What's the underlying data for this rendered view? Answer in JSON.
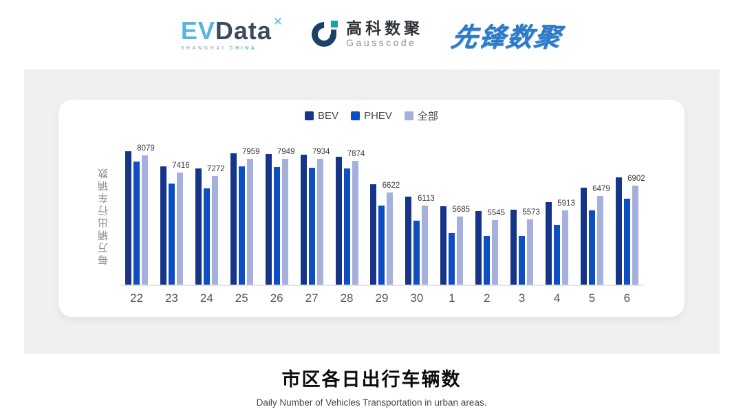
{
  "header": {
    "evdata": {
      "ev": "EV",
      "data": "Data",
      "star": "✕",
      "sub_left": "SHANGHAI",
      "sub_right": "CHINA"
    },
    "gausscode": {
      "cn": "高科数聚",
      "en": "Gausscode"
    },
    "pioneer": {
      "text": "先锋数聚"
    }
  },
  "chart_data": {
    "type": "bar",
    "title": "市区各日出行车辆数",
    "subtitle": "Daily Number of Vehicles Transportation in urban areas.",
    "ylabel": "每万辆出行车辆数",
    "legend_position": "top",
    "grid": false,
    "ylim": [
      3000,
      9000
    ],
    "categories": [
      "22",
      "23",
      "24",
      "25",
      "26",
      "27",
      "28",
      "29",
      "30",
      "1",
      "2",
      "3",
      "4",
      "5",
      "6"
    ],
    "series": [
      {
        "name": "BEV",
        "color": "#163488",
        "values": [
          8240,
          7660,
          7570,
          8160,
          8130,
          8120,
          8030,
          6940,
          6460,
          6080,
          5900,
          5940,
          6230,
          6800,
          7220
        ]
      },
      {
        "name": "PHEV",
        "color": "#0d4fc3",
        "values": [
          7850,
          6980,
          6780,
          7650,
          7630,
          7590,
          7570,
          6100,
          5520,
          5020,
          4920,
          4910,
          5350,
          5920,
          6380
        ]
      },
      {
        "name": "全部",
        "color": "#a6b0dd",
        "values": [
          8079,
          7416,
          7272,
          7959,
          7949,
          7934,
          7874,
          6622,
          6113,
          5685,
          5545,
          5573,
          5913,
          6479,
          6902
        ]
      }
    ],
    "labels_on_series": "全部",
    "value_labels": [
      8079,
      7416,
      7272,
      7959,
      7949,
      7934,
      7874,
      6622,
      6113,
      5685,
      5545,
      5573,
      5913,
      6479,
      6902
    ]
  }
}
